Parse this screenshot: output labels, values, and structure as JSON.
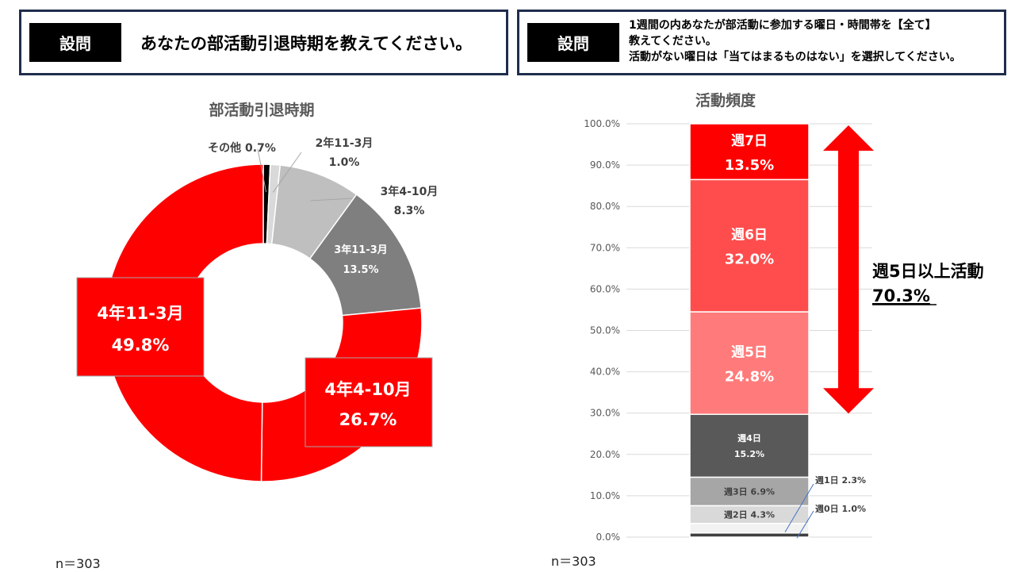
{
  "question_left": {
    "tag": "設問",
    "text": "あなたの部活動引退時期を教えてください。"
  },
  "question_right": {
    "tag": "設問",
    "lines": [
      "1週間の内あなたが部活動に参加する曜日・時間帯を【全て】",
      "教えてください。",
      "活動がない曜日は「当てはまるものはない」を選択してください。"
    ]
  },
  "colors": {
    "red": "#ff0000",
    "red_medium": "#ff4d4d",
    "red_light": "#ff7b7b",
    "gray_dark": "#595959",
    "gray_mid": "#7f7f7f",
    "gray_light": "#bfbfbf",
    "gray_pale": "#d9d9d9",
    "gray_faint": "#f2f2f2",
    "black": "#000000",
    "navy": "#1f2d4d"
  },
  "chart_data": [
    {
      "type": "pie",
      "subtype": "donut",
      "title": "部活動引退時期",
      "sample_size": "n＝303",
      "slices": [
        {
          "label": "その他",
          "value": 0.7,
          "display": "0.7%",
          "color": "#000000"
        },
        {
          "label": "2年11-3月",
          "value": 1.0,
          "display": "1.0%",
          "color": "#d9d9d9"
        },
        {
          "label": "3年4-10月",
          "value": 8.3,
          "display": "8.3%",
          "color": "#bfbfbf"
        },
        {
          "label": "3年11-3月",
          "value": 13.5,
          "display": "13.5%",
          "color": "#7f7f7f"
        },
        {
          "label": "4年4-10月",
          "value": 26.7,
          "display": "26.7%",
          "color": "#ff0000"
        },
        {
          "label": "4年11-3月",
          "value": 49.8,
          "display": "49.8%",
          "color": "#ff0000"
        }
      ]
    },
    {
      "type": "bar",
      "subtype": "stacked-100",
      "title": "活動頻度",
      "sample_size": "n＝303",
      "ylim": [
        0,
        100
      ],
      "yticks": [
        "0.0%",
        "10.0%",
        "20.0%",
        "30.0%",
        "40.0%",
        "50.0%",
        "60.0%",
        "70.0%",
        "80.0%",
        "90.0%",
        "100.0%"
      ],
      "segments": [
        {
          "label": "週0日",
          "value": 1.0,
          "display": "1.0%",
          "color": "#404040"
        },
        {
          "label": "週1日",
          "value": 2.3,
          "display": "2.3%",
          "color": "#f2f2f2"
        },
        {
          "label": "週2日",
          "value": 4.3,
          "display": "4.3%",
          "color": "#d9d9d9"
        },
        {
          "label": "週3日",
          "value": 6.9,
          "display": "6.9%",
          "color": "#a6a6a6"
        },
        {
          "label": "週4日",
          "value": 15.2,
          "display": "15.2%",
          "color": "#595959"
        },
        {
          "label": "週5日",
          "value": 24.8,
          "display": "24.8%",
          "color": "#ff7b7b"
        },
        {
          "label": "週6日",
          "value": 32.0,
          "display": "32.0%",
          "color": "#ff4d4d"
        },
        {
          "label": "週7日",
          "value": 13.5,
          "display": "13.5%",
          "color": "#ff0000"
        }
      ],
      "annotation": {
        "label": "週5日以上活動",
        "value": 70.3,
        "display": "70.3%"
      }
    }
  ]
}
